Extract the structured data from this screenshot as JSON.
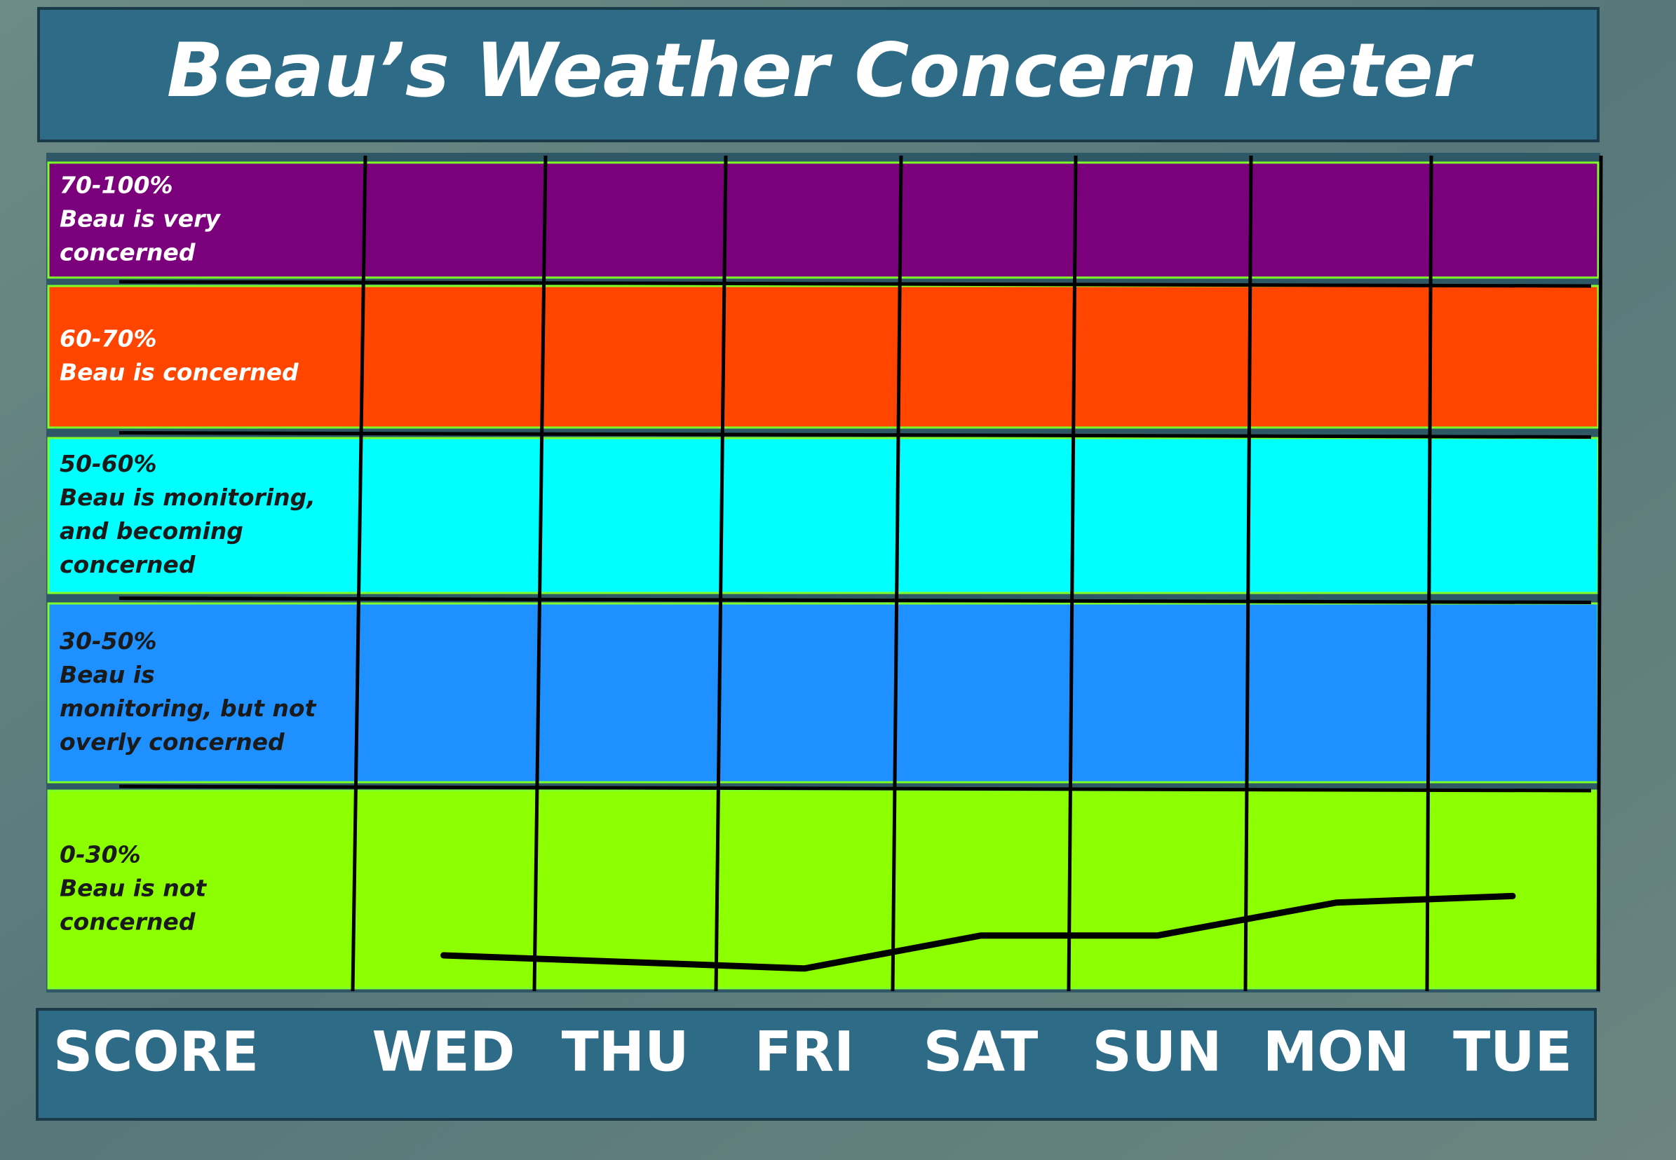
{
  "chart_data": {
    "type": "line",
    "title": "Beau’s Weather Concern Meter",
    "x_label": "SCORE",
    "categories": [
      "WED",
      "THU",
      "FRI",
      "SAT",
      "SUN",
      "MON",
      "TUE"
    ],
    "series": [
      {
        "color": "#000000",
        "values": [
          5,
          4,
          3,
          8,
          8,
          13,
          14
        ]
      }
    ],
    "ylim": [
      0,
      100
    ],
    "bands": [
      {
        "range_label": "70-100%",
        "from": 70,
        "to": 100,
        "text_lines": [
          "Beau is very",
          "concerned"
        ],
        "color": "#7b007b",
        "text_color": "#ffffff"
      },
      {
        "range_label": "60-70%",
        "from": 60,
        "to": 70,
        "text_lines": [
          "Beau is concerned"
        ],
        "color": "#ff4500",
        "text_color": "#ffffff"
      },
      {
        "range_label": "50-60%",
        "from": 50,
        "to": 60,
        "text_lines": [
          "Beau is monitoring,",
          "and becoming",
          "concerned"
        ],
        "color": "#00ffff",
        "text_color": "#1a1a1a"
      },
      {
        "range_label": "30-50%",
        "from": 30,
        "to": 50,
        "text_lines": [
          "Beau is",
          "monitoring, but not",
          "overly concerned"
        ],
        "color": "#1e90ff",
        "text_color": "#1a1a1a"
      },
      {
        "range_label": "0-30%",
        "from": 0,
        "to": 30,
        "text_lines": [
          "Beau is not",
          "concerned"
        ],
        "color": "#8cff00",
        "text_color": "#1a1a1a"
      }
    ]
  }
}
